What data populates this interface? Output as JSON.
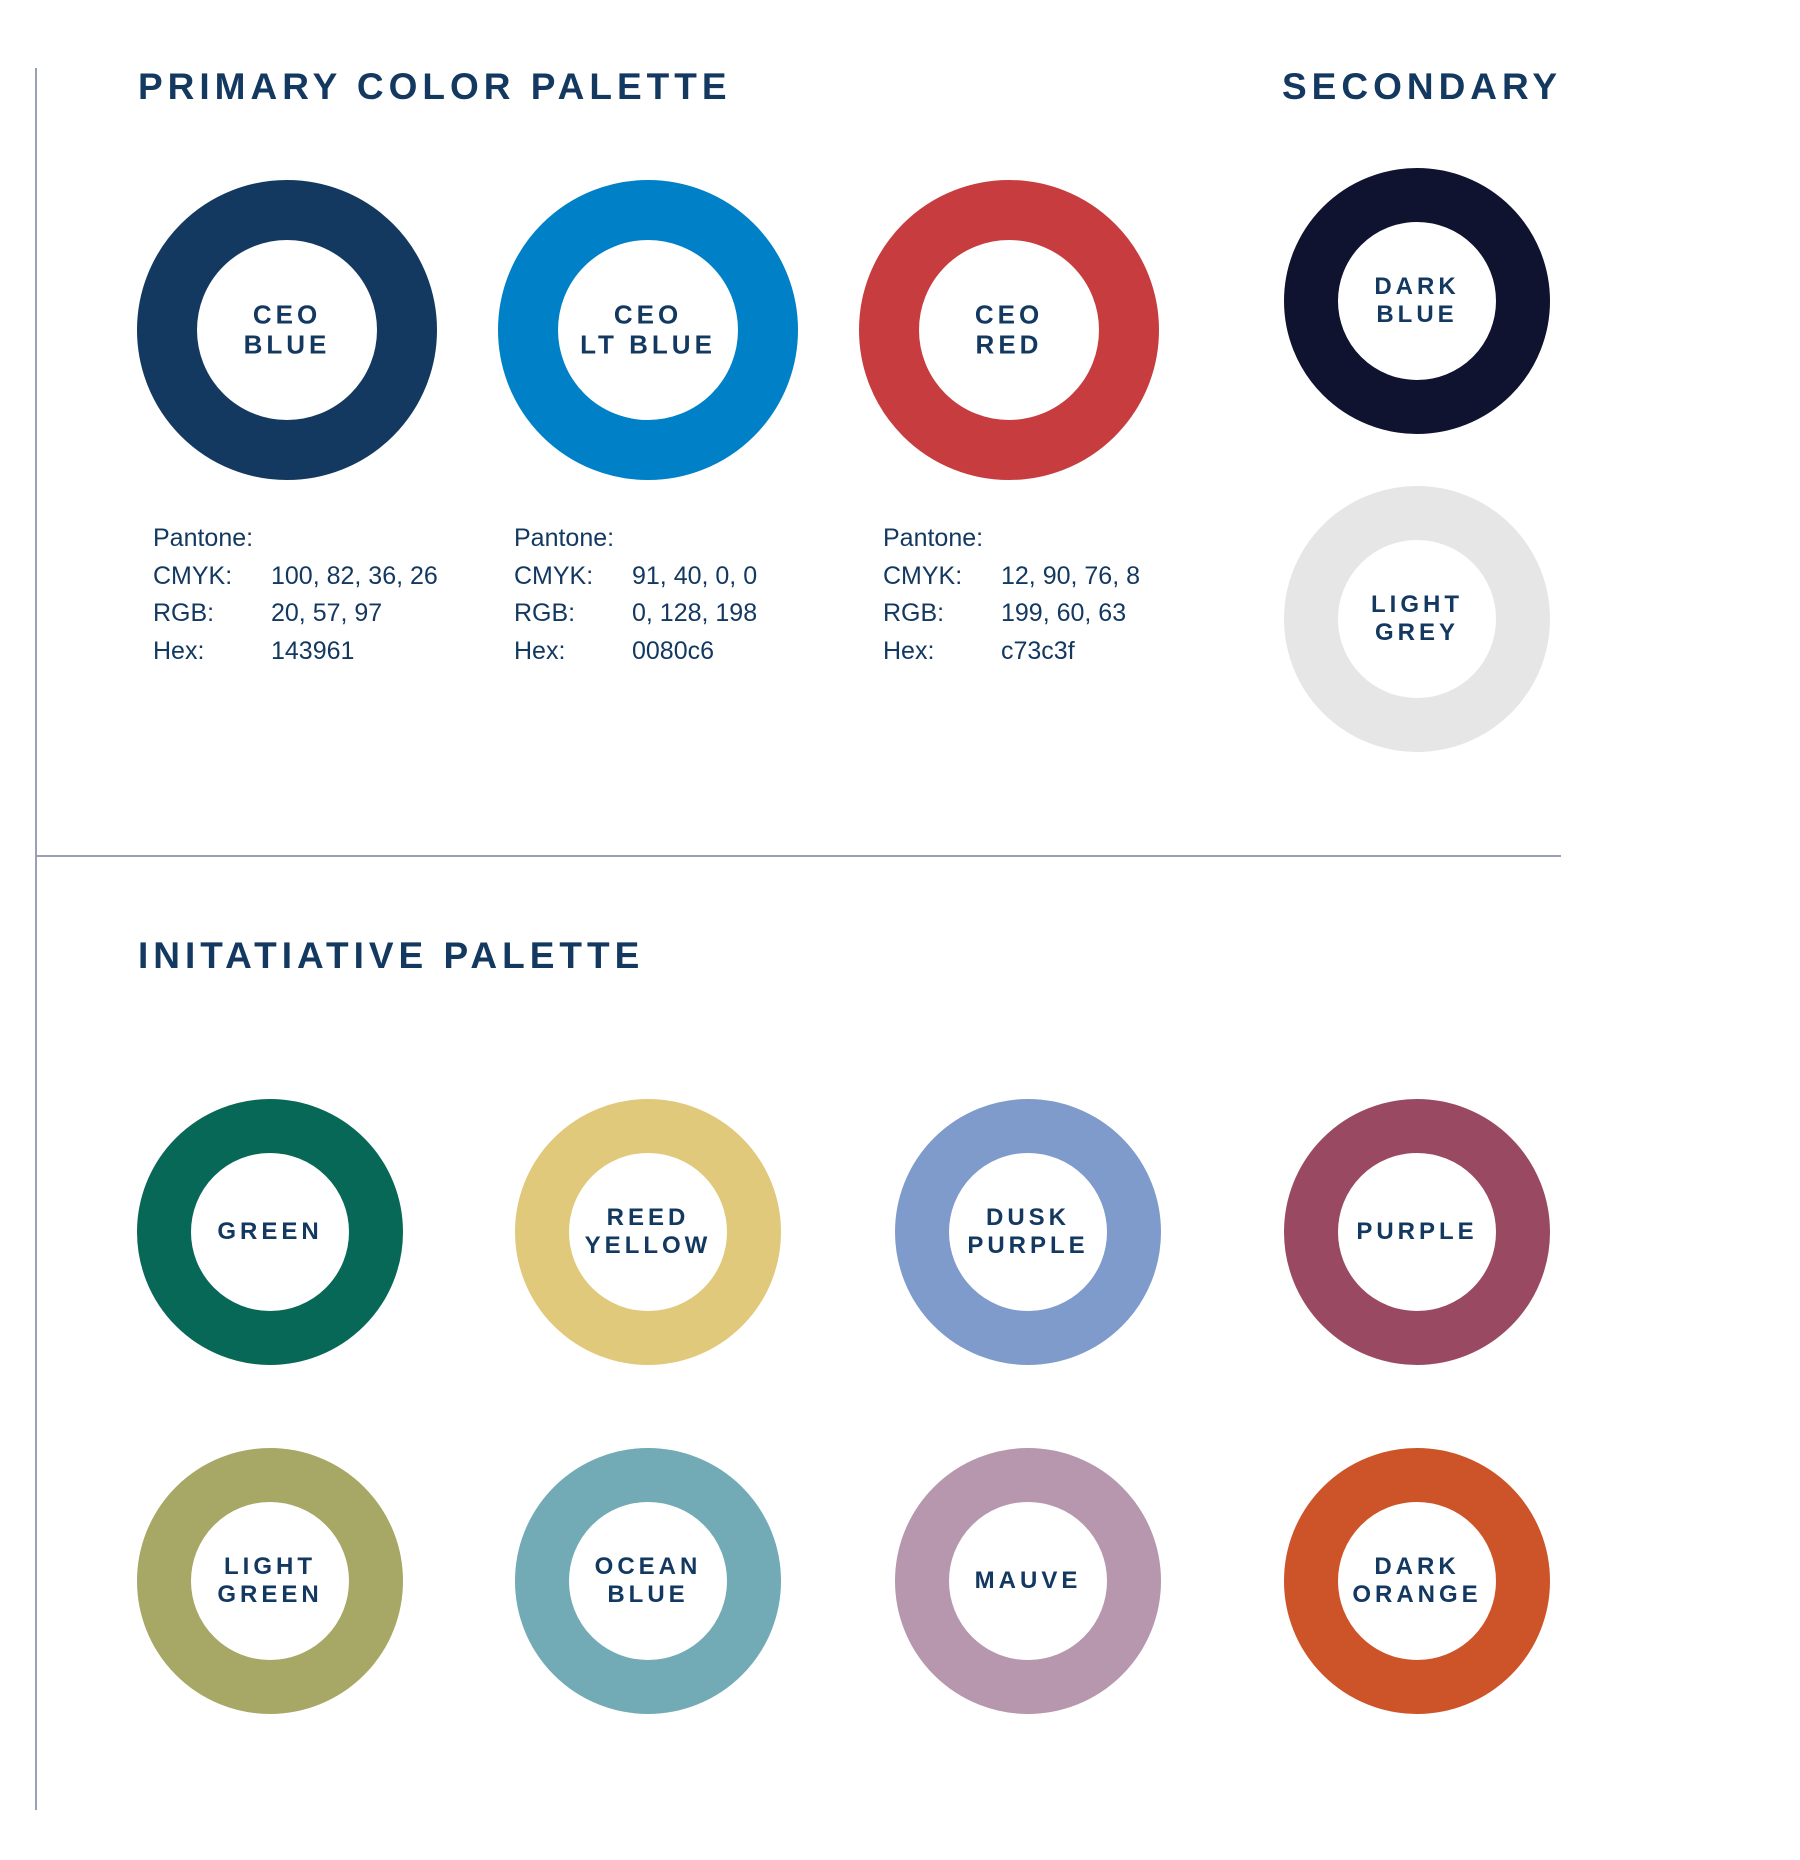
{
  "primary": {
    "heading": "PRIMARY COLOR PALETTE",
    "swatches": [
      {
        "label": "CEO\nBLUE",
        "color": "#143961",
        "specs": [
          {
            "key": "Pantone:",
            "value": ""
          },
          {
            "key": "CMYK:",
            "value": "100, 82, 36, 26"
          },
          {
            "key": "RGB:",
            "value": "20, 57, 97"
          },
          {
            "key": "Hex:",
            "value": "143961"
          }
        ]
      },
      {
        "label": "CEO\nLT BLUE",
        "color": "#0080c6",
        "specs": [
          {
            "key": "Pantone:",
            "value": ""
          },
          {
            "key": "CMYK:",
            "value": "91, 40, 0, 0"
          },
          {
            "key": "RGB:",
            "value": "0, 128, 198"
          },
          {
            "key": "Hex:",
            "value": "0080c6"
          }
        ]
      },
      {
        "label": "CEO\nRED",
        "color": "#c73c3f",
        "specs": [
          {
            "key": "Pantone:",
            "value": ""
          },
          {
            "key": "CMYK:",
            "value": "12, 90, 76, 8"
          },
          {
            "key": "RGB:",
            "value": "199, 60, 63"
          },
          {
            "key": "Hex:",
            "value": "c73c3f"
          }
        ]
      }
    ]
  },
  "secondary": {
    "heading": "SECONDARY",
    "swatches": [
      {
        "label": "DARK\nBLUE",
        "color": "#0f1330"
      },
      {
        "label": "LIGHT\nGREY",
        "color": "#e6e6e6"
      }
    ]
  },
  "initiative": {
    "heading": "INITATIATIVE PALETTE",
    "swatches": [
      {
        "label": "GREEN",
        "color": "#086857"
      },
      {
        "label": "REED\nYELLOW",
        "color": "#e0c97a"
      },
      {
        "label": "DUSK\nPURPLE",
        "color": "#7f9bcb"
      },
      {
        "label": "PURPLE",
        "color": "#994a62"
      },
      {
        "label": "LIGHT\nGREEN",
        "color": "#a7a766"
      },
      {
        "label": "OCEAN\nBLUE",
        "color": "#72abb5"
      },
      {
        "label": "MAUVE",
        "color": "#b697ae"
      },
      {
        "label": "DARK\nORANGE",
        "color": "#cd5428"
      }
    ]
  }
}
